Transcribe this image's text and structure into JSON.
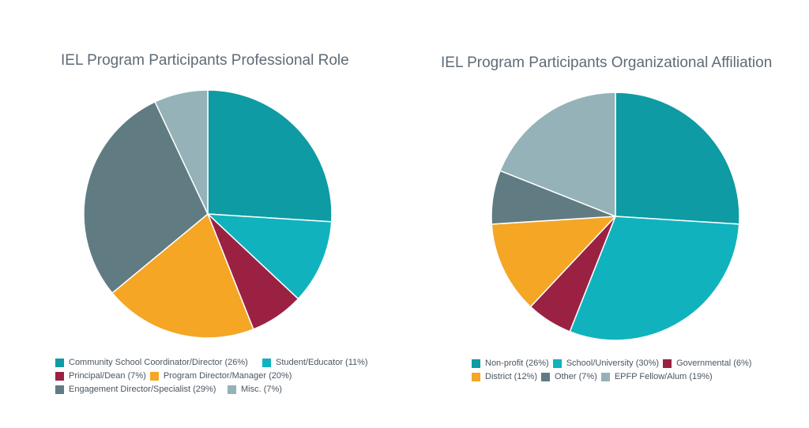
{
  "chart_data": [
    {
      "type": "pie",
      "title": "IEL Program Participants Professional Role",
      "categories": [
        "Community School Coordinator/Director (26%)",
        "Student/Educator (11%)",
        "Principal/Dean (7%)",
        "Program Director/Manager (20%)",
        "Engagement Director/Specialist (29%)",
        "Misc. (7%)"
      ],
      "values": [
        26,
        11,
        7,
        20,
        29,
        7
      ],
      "colors": [
        "#0e9ba3",
        "#10b3bd",
        "#9b2143",
        "#f4a624",
        "#607c82",
        "#94b2b8"
      ],
      "legend": "bottom"
    },
    {
      "type": "pie",
      "title": "IEL Program Participants Organizational Affiliation",
      "categories": [
        "Non-profit (26%)",
        "School/University (30%)",
        "Governmental (6%)",
        "District (12%)",
        "Other (7%)",
        "EPFP Fellow/Alum (19%)"
      ],
      "values": [
        26,
        30,
        6,
        12,
        7,
        19
      ],
      "colors": [
        "#0e9ba3",
        "#10b3bd",
        "#9b2143",
        "#f4a624",
        "#607c82",
        "#94b2b8"
      ],
      "legend": "bottom"
    }
  ]
}
